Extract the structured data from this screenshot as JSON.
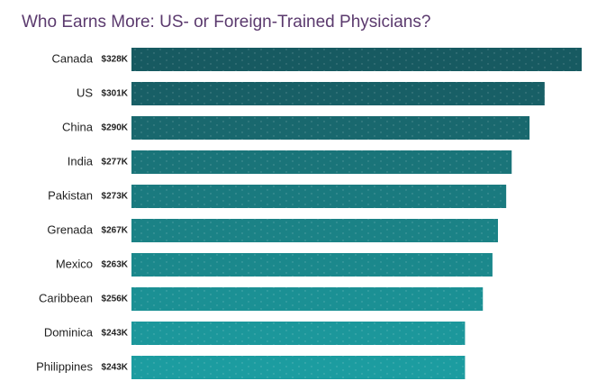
{
  "chart_data": {
    "type": "hbar",
    "title": "Who Earns More: US- or Foreign-Trained Physicians?",
    "categories": [
      "Canada",
      "US",
      "China",
      "India",
      "Pakistan",
      "Grenada",
      "Mexico",
      "Caribbean",
      "Dominica",
      "Philippines"
    ],
    "values": [
      328,
      301,
      290,
      277,
      273,
      267,
      263,
      256,
      243,
      243
    ],
    "value_labels": [
      "$328K",
      "$301K",
      "$290K",
      "$277K",
      "$273K",
      "$267K",
      "$263K",
      "$256K",
      "$243K",
      "$243K"
    ],
    "colors": [
      "#175a61",
      "#185f66",
      "#19686e",
      "#1a7479",
      "#1a7a7f",
      "#1b8286",
      "#1b888c",
      "#1b9094",
      "#1c979b",
      "#1c9ca0"
    ]
  }
}
